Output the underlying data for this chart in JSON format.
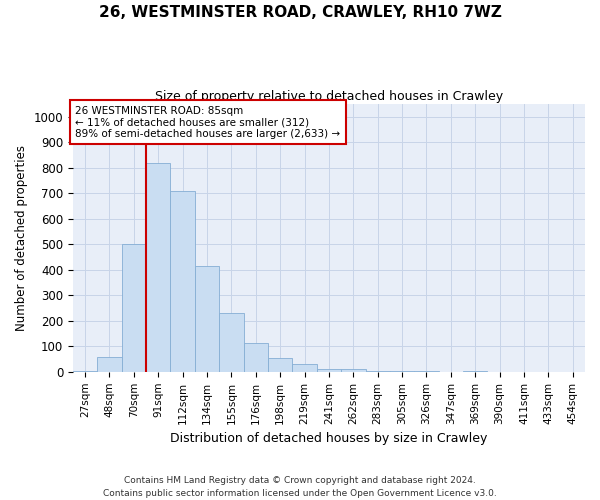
{
  "title": "26, WESTMINSTER ROAD, CRAWLEY, RH10 7WZ",
  "subtitle": "Size of property relative to detached houses in Crawley",
  "xlabel": "Distribution of detached houses by size in Crawley",
  "ylabel": "Number of detached properties",
  "bar_color": "#c9ddf2",
  "bar_edge_color": "#85aed4",
  "categories": [
    "27sqm",
    "48sqm",
    "70sqm",
    "91sqm",
    "112sqm",
    "134sqm",
    "155sqm",
    "176sqm",
    "198sqm",
    "219sqm",
    "241sqm",
    "262sqm",
    "283sqm",
    "305sqm",
    "326sqm",
    "347sqm",
    "369sqm",
    "390sqm",
    "411sqm",
    "433sqm",
    "454sqm"
  ],
  "values": [
    5,
    60,
    500,
    820,
    710,
    415,
    230,
    115,
    55,
    30,
    10,
    10,
    5,
    5,
    5,
    0,
    5,
    0,
    0,
    0,
    0
  ],
  "property_line_color": "#cc0000",
  "annotation_line1": "26 WESTMINSTER ROAD: 85sqm",
  "annotation_line2": "← 11% of detached houses are smaller (312)",
  "annotation_line3": "89% of semi-detached houses are larger (2,633) →",
  "annotation_box_color": "#cc0000",
  "ylim": [
    0,
    1050
  ],
  "yticks": [
    0,
    100,
    200,
    300,
    400,
    500,
    600,
    700,
    800,
    900,
    1000
  ],
  "grid_color": "#c8d4e8",
  "background_color": "#e8eef8",
  "footer_line1": "Contains HM Land Registry data © Crown copyright and database right 2024.",
  "footer_line2": "Contains public sector information licensed under the Open Government Licence v3.0."
}
